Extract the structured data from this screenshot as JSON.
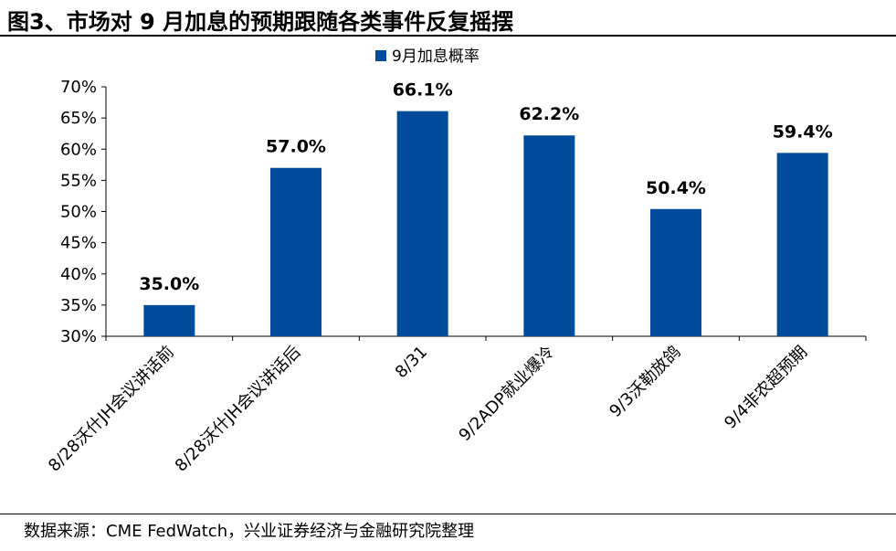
{
  "figure": {
    "title": "图3、市场对 9 月加息的预期跟随各类事件反复摇摆",
    "source": "数据来源：CME FedWatch，兴业证券经济与金融研究院整理"
  },
  "chart_data": {
    "type": "bar",
    "categories": [
      "8/28沃什JH会议讲话前",
      "8/28沃什JH会议讲话后",
      "8/31",
      "9/2ADP就业爆冷",
      "9/3沃勒放鸽",
      "9/4非农超预期"
    ],
    "series": [
      {
        "name": "9月加息概率",
        "values": [
          35.0,
          57.0,
          66.1,
          62.2,
          50.4,
          59.4
        ],
        "labels": [
          "35.0%",
          "57.0%",
          "66.1%",
          "62.2%",
          "50.4%",
          "59.4%"
        ],
        "color": "#004b9b"
      }
    ],
    "ylim": [
      30,
      70
    ],
    "yticks": [
      30,
      35,
      40,
      45,
      50,
      55,
      60,
      65,
      70
    ],
    "ytick_labels": [
      "30%",
      "35%",
      "40%",
      "45%",
      "50%",
      "55%",
      "60%",
      "65%",
      "70%"
    ],
    "xlabel": "",
    "ylabel": "",
    "legend_position": "top-center",
    "grid": false,
    "axis_color": "#000000"
  }
}
